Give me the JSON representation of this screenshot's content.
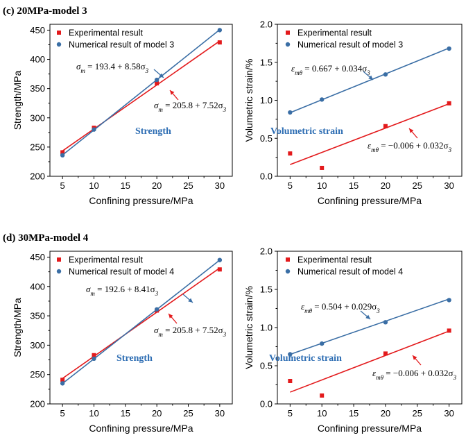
{
  "colors": {
    "experimental": "#e31a1c",
    "numerical": "#3a6ea5",
    "label": "#2d6db3"
  },
  "panel_titles": [
    "(c) 20MPa-model 3",
    "(d) 30MPa-model 4"
  ],
  "chart_data": [
    {
      "type": "scatter",
      "panel": "c-strength",
      "xlabel": "Confining pressure/MPa",
      "ylabel": "Strength/MPa",
      "xlim": [
        3,
        32
      ],
      "ylim": [
        200,
        460
      ],
      "xticks": [
        5,
        10,
        15,
        20,
        25,
        30
      ],
      "yticks": [
        200,
        250,
        300,
        350,
        400,
        450
      ],
      "inner_label": "Strength",
      "series": [
        {
          "name": "Experimental result",
          "marker": "square",
          "color": "#e31a1c",
          "x": [
            5,
            10,
            20,
            30
          ],
          "y": [
            241,
            283,
            359,
            429
          ],
          "fit": {
            "intercept": 205.8,
            "slope": 7.52,
            "equation": "σm = 205.8 + 7.52σ3"
          }
        },
        {
          "name": "Numerical result of model 3",
          "marker": "circle",
          "color": "#3a6ea5",
          "x": [
            5,
            10,
            20,
            30
          ],
          "y": [
            236,
            280,
            365,
            450
          ],
          "fit": {
            "intercept": 193.4,
            "slope": 8.58,
            "equation": "σm = 193.4 + 8.58σ3"
          }
        }
      ]
    },
    {
      "type": "scatter",
      "panel": "c-volumetric",
      "xlabel": "Confining pressure/MPa",
      "ylabel": "Volumetric strain/%",
      "xlim": [
        3,
        32
      ],
      "ylim": [
        0,
        2.0
      ],
      "xticks": [
        5,
        10,
        15,
        20,
        25,
        30
      ],
      "yticks": [
        0.0,
        0.5,
        1.0,
        1.5,
        2.0
      ],
      "inner_label": "Volumetric strain",
      "series": [
        {
          "name": "Experimental result",
          "marker": "square",
          "color": "#e31a1c",
          "x": [
            5,
            10,
            20,
            30
          ],
          "y": [
            0.3,
            0.11,
            0.66,
            0.96
          ],
          "fit": {
            "intercept": -0.006,
            "slope": 0.032,
            "equation": "εmθ = −0.006 + 0.032σ3"
          }
        },
        {
          "name": "Numerical result of model 3",
          "marker": "circle",
          "color": "#3a6ea5",
          "x": [
            5,
            10,
            20,
            30
          ],
          "y": [
            0.84,
            1.01,
            1.34,
            1.68
          ],
          "fit": {
            "intercept": 0.667,
            "slope": 0.034,
            "equation": "εmθ = 0.667 + 0.034σ3"
          }
        }
      ]
    },
    {
      "type": "scatter",
      "panel": "d-strength",
      "xlabel": "Confining pressure/MPa",
      "ylabel": "Strength/MPa",
      "xlim": [
        3,
        32
      ],
      "ylim": [
        200,
        460
      ],
      "xticks": [
        5,
        10,
        15,
        20,
        25,
        30
      ],
      "yticks": [
        200,
        250,
        300,
        350,
        400,
        450
      ],
      "inner_label": "Strength",
      "series": [
        {
          "name": "Experimental result",
          "marker": "square",
          "color": "#e31a1c",
          "x": [
            5,
            10,
            20,
            30
          ],
          "y": [
            241,
            283,
            359,
            429
          ],
          "fit": {
            "intercept": 205.8,
            "slope": 7.52,
            "equation": "σm = 205.8 + 7.52σ3"
          }
        },
        {
          "name": "Numerical result of model 4",
          "marker": "circle",
          "color": "#3a6ea5",
          "x": [
            5,
            10,
            20,
            30
          ],
          "y": [
            235,
            277,
            361,
            445
          ],
          "fit": {
            "intercept": 192.6,
            "slope": 8.41,
            "equation": "σm = 192.6 + 8.41σ3"
          }
        }
      ]
    },
    {
      "type": "scatter",
      "panel": "d-volumetric",
      "xlabel": "Confining pressure/MPa",
      "ylabel": "Volumetric strain/%",
      "xlim": [
        3,
        32
      ],
      "ylim": [
        0,
        2.0
      ],
      "xticks": [
        5,
        10,
        15,
        20,
        25,
        30
      ],
      "yticks": [
        0.0,
        0.5,
        1.0,
        1.5,
        2.0
      ],
      "inner_label": "Volumetric strain",
      "series": [
        {
          "name": "Experimental result",
          "marker": "square",
          "color": "#e31a1c",
          "x": [
            5,
            10,
            20,
            30
          ],
          "y": [
            0.3,
            0.11,
            0.66,
            0.96
          ],
          "fit": {
            "intercept": -0.006,
            "slope": 0.032,
            "equation": "εmθ = −0.006 + 0.032σ3"
          }
        },
        {
          "name": "Numerical result of model 4",
          "marker": "circle",
          "color": "#3a6ea5",
          "x": [
            5,
            10,
            20,
            30
          ],
          "y": [
            0.65,
            0.79,
            1.07,
            1.36
          ],
          "fit": {
            "intercept": 0.504,
            "slope": 0.029,
            "equation": "εmθ = 0.504 + 0.029σ3"
          }
        }
      ]
    }
  ]
}
